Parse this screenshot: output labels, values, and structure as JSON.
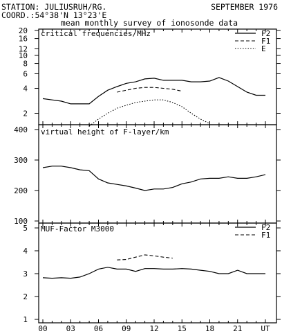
{
  "header": {
    "station": "STATION: JULIUSRUH/RG.",
    "date": "SEPTEMBER 1976",
    "coord": "COORD.:54°38'N 13°23'E",
    "subtitle": "mean monthly survey of ionosonde data"
  },
  "chart_data": [
    {
      "type": "line",
      "title": "critical frequencies/MHz",
      "y_scale": "log",
      "ylim": [
        1.4,
        20
      ],
      "yticks": [
        2,
        4,
        6,
        8,
        10,
        12,
        16,
        20
      ],
      "xlim": [
        0,
        24
      ],
      "grid": false,
      "legend": "top-right",
      "series": [
        {
          "name": "F2",
          "style": "solid",
          "x": [
            0,
            1,
            2,
            3,
            4,
            5,
            6,
            7,
            8,
            9,
            10,
            11,
            12,
            13,
            14,
            15,
            16,
            17,
            18,
            19,
            20,
            21,
            22,
            23,
            24
          ],
          "values": [
            3.0,
            2.9,
            2.8,
            2.6,
            2.6,
            2.6,
            3.2,
            3.8,
            4.2,
            4.6,
            4.8,
            5.2,
            5.3,
            5.0,
            5.0,
            5.0,
            4.8,
            4.8,
            4.9,
            5.4,
            4.9,
            4.2,
            3.6,
            3.3,
            3.3
          ]
        },
        {
          "name": "F1",
          "style": "dashed",
          "x": [
            8,
            9,
            10,
            11,
            12,
            13,
            14,
            15
          ],
          "values": [
            3.6,
            3.8,
            4.0,
            4.1,
            4.1,
            4.0,
            3.9,
            3.7
          ]
        },
        {
          "name": "E",
          "style": "dotted",
          "x": [
            5,
            6,
            7,
            8,
            9,
            10,
            11,
            12,
            13,
            14,
            15,
            16,
            17,
            18
          ],
          "values": [
            1.4,
            1.7,
            2.0,
            2.3,
            2.5,
            2.7,
            2.8,
            2.9,
            2.9,
            2.7,
            2.4,
            2.0,
            1.7,
            1.5
          ]
        }
      ]
    },
    {
      "type": "line",
      "title": "virtual height of F-layer/km",
      "ylim": [
        100,
        400
      ],
      "yticks": [
        100,
        200,
        300,
        400
      ],
      "xlim": [
        0,
        24
      ],
      "grid": false,
      "series": [
        {
          "style": "solid",
          "x": [
            0,
            1,
            2,
            3,
            4,
            5,
            6,
            7,
            8,
            9,
            10,
            11,
            12,
            13,
            14,
            15,
            16,
            17,
            18,
            19,
            20,
            21,
            22,
            23,
            24
          ],
          "values": [
            275,
            280,
            280,
            275,
            268,
            265,
            238,
            225,
            220,
            215,
            208,
            200,
            205,
            205,
            210,
            222,
            228,
            238,
            240,
            240,
            245,
            240,
            240,
            245,
            252
          ]
        }
      ]
    },
    {
      "type": "line",
      "title": "MUF-Factor M3000",
      "ylim": [
        1,
        5
      ],
      "yticks": [
        1,
        2,
        3,
        4,
        5
      ],
      "xlim": [
        0,
        24
      ],
      "grid": false,
      "legend": "top-right",
      "series": [
        {
          "name": "F2",
          "style": "solid",
          "x": [
            0,
            1,
            2,
            3,
            4,
            5,
            6,
            7,
            8,
            9,
            10,
            11,
            12,
            13,
            14,
            15,
            16,
            17,
            18,
            19,
            20,
            21,
            22,
            23,
            24
          ],
          "values": [
            2.82,
            2.8,
            2.82,
            2.8,
            2.85,
            3.0,
            3.2,
            3.28,
            3.2,
            3.2,
            3.1,
            3.22,
            3.22,
            3.2,
            3.2,
            3.22,
            3.2,
            3.15,
            3.1,
            3.0,
            3.0,
            3.15,
            3.0,
            3.0,
            3.0
          ]
        },
        {
          "name": "F1",
          "style": "dashed",
          "x": [
            8,
            9,
            10,
            11,
            12,
            13,
            14
          ],
          "values": [
            3.6,
            3.62,
            3.72,
            3.82,
            3.78,
            3.72,
            3.68
          ]
        }
      ]
    }
  ],
  "x_axis": {
    "tick_labels": [
      "00",
      "03",
      "06",
      "09",
      "12",
      "15",
      "18",
      "21",
      "UT"
    ],
    "tick_hours": [
      0,
      3,
      6,
      9,
      12,
      15,
      18,
      21,
      24
    ]
  }
}
